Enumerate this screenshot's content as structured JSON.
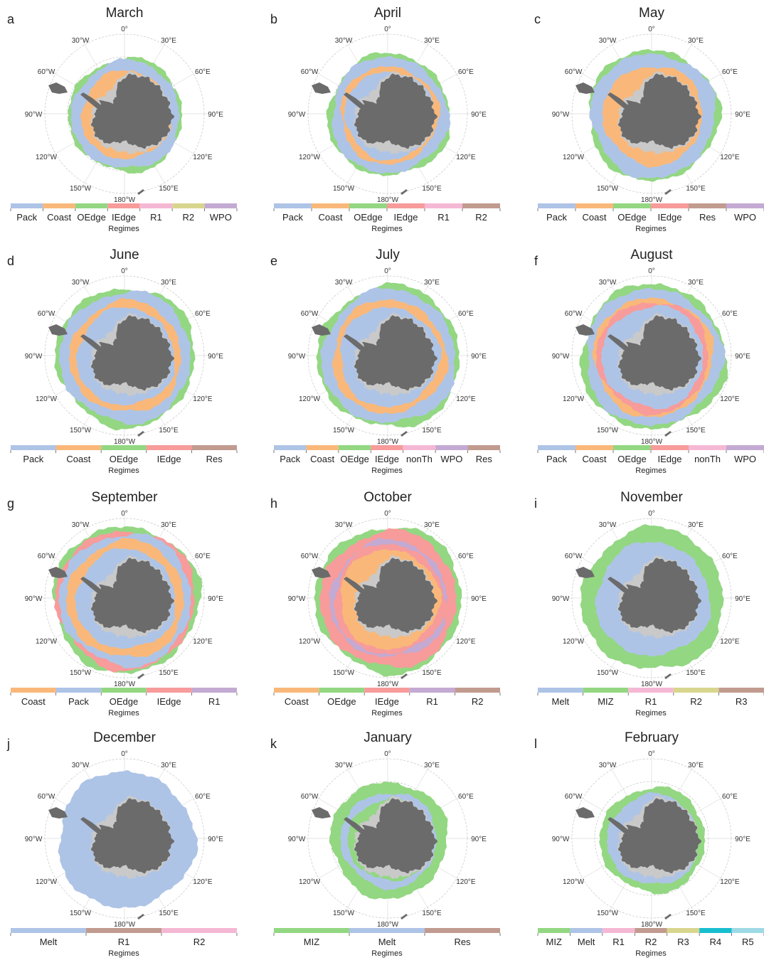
{
  "lon_labels": [
    "0°",
    "30°E",
    "60°E",
    "90°E",
    "120°E",
    "150°E",
    "180°W",
    "150°W",
    "120°W",
    "90°W",
    "60°W",
    "30°W"
  ],
  "legend_title": "Regimes",
  "panels": [
    {
      "letter": "a",
      "title": "March",
      "regimes": [
        {
          "name": "Pack",
          "color": "#aec4e6"
        },
        {
          "name": "Coast",
          "color": "#f9b87a"
        },
        {
          "name": "OEdge",
          "color": "#93d782"
        },
        {
          "name": "IEdge",
          "color": "#f79b9b"
        },
        {
          "name": "R1",
          "color": "#f5b8d4"
        },
        {
          "name": "R2",
          "color": "#d8d68e"
        },
        {
          "name": "WPO",
          "color": "#c3aad3"
        }
      ]
    },
    {
      "letter": "b",
      "title": "April",
      "regimes": [
        {
          "name": "Pack",
          "color": "#aec4e6"
        },
        {
          "name": "Coast",
          "color": "#f9b87a"
        },
        {
          "name": "OEdge",
          "color": "#93d782"
        },
        {
          "name": "IEdge",
          "color": "#f79b9b"
        },
        {
          "name": "R1",
          "color": "#f5b8d4"
        },
        {
          "name": "R2",
          "color": "#c19b8f"
        }
      ]
    },
    {
      "letter": "c",
      "title": "May",
      "regimes": [
        {
          "name": "Pack",
          "color": "#aec4e6"
        },
        {
          "name": "Coast",
          "color": "#f9b87a"
        },
        {
          "name": "OEdge",
          "color": "#93d782"
        },
        {
          "name": "IEdge",
          "color": "#f79b9b"
        },
        {
          "name": "Res",
          "color": "#c19b8f"
        },
        {
          "name": "WPO",
          "color": "#c3aad3"
        }
      ]
    },
    {
      "letter": "d",
      "title": "June",
      "regimes": [
        {
          "name": "Pack",
          "color": "#aec4e6"
        },
        {
          "name": "Coast",
          "color": "#f9b87a"
        },
        {
          "name": "OEdge",
          "color": "#93d782"
        },
        {
          "name": "IEdge",
          "color": "#f79b9b"
        },
        {
          "name": "Res",
          "color": "#c19b8f"
        }
      ]
    },
    {
      "letter": "e",
      "title": "July",
      "regimes": [
        {
          "name": "Pack",
          "color": "#aec4e6"
        },
        {
          "name": "Coast",
          "color": "#f9b87a"
        },
        {
          "name": "OEdge",
          "color": "#93d782"
        },
        {
          "name": "IEdge",
          "color": "#f79b9b"
        },
        {
          "name": "nonTh",
          "color": "#f5b8d4"
        },
        {
          "name": "WPO",
          "color": "#c3aad3"
        },
        {
          "name": "Res",
          "color": "#c19b8f"
        }
      ]
    },
    {
      "letter": "f",
      "title": "August",
      "regimes": [
        {
          "name": "Pack",
          "color": "#aec4e6"
        },
        {
          "name": "Coast",
          "color": "#f9b87a"
        },
        {
          "name": "OEdge",
          "color": "#93d782"
        },
        {
          "name": "IEdge",
          "color": "#f79b9b"
        },
        {
          "name": "nonTh",
          "color": "#f5b8d4"
        },
        {
          "name": "WPO",
          "color": "#c3aad3"
        }
      ]
    },
    {
      "letter": "g",
      "title": "September",
      "regimes": [
        {
          "name": "Coast",
          "color": "#f9b87a"
        },
        {
          "name": "Pack",
          "color": "#aec4e6"
        },
        {
          "name": "OEdge",
          "color": "#93d782"
        },
        {
          "name": "IEdge",
          "color": "#f79b9b"
        },
        {
          "name": "R1",
          "color": "#c3aad3"
        }
      ]
    },
    {
      "letter": "h",
      "title": "October",
      "regimes": [
        {
          "name": "Coast",
          "color": "#f9b87a"
        },
        {
          "name": "OEdge",
          "color": "#93d782"
        },
        {
          "name": "IEdge",
          "color": "#f79b9b"
        },
        {
          "name": "R1",
          "color": "#c3aad3"
        },
        {
          "name": "R2",
          "color": "#c19b8f"
        }
      ]
    },
    {
      "letter": "i",
      "title": "November",
      "regimes": [
        {
          "name": "Melt",
          "color": "#aec4e6"
        },
        {
          "name": "MIZ",
          "color": "#93d782"
        },
        {
          "name": "R1",
          "color": "#f5b8d4"
        },
        {
          "name": "R2",
          "color": "#d8d68e"
        },
        {
          "name": "R3",
          "color": "#c19b8f"
        }
      ]
    },
    {
      "letter": "j",
      "title": "December",
      "regimes": [
        {
          "name": "Melt",
          "color": "#aec4e6"
        },
        {
          "name": "R1",
          "color": "#c19b8f"
        },
        {
          "name": "R2",
          "color": "#f5b8d4"
        }
      ]
    },
    {
      "letter": "k",
      "title": "January",
      "regimes": [
        {
          "name": "MIZ",
          "color": "#93d782"
        },
        {
          "name": "Melt",
          "color": "#aec4e6"
        },
        {
          "name": "Res",
          "color": "#c19b8f"
        }
      ]
    },
    {
      "letter": "l",
      "title": "February",
      "regimes": [
        {
          "name": "MIZ",
          "color": "#93d782"
        },
        {
          "name": "Melt",
          "color": "#aec4e6"
        },
        {
          "name": "R1",
          "color": "#f5b8d4"
        },
        {
          "name": "R2",
          "color": "#c19b8f"
        },
        {
          "name": "R3",
          "color": "#d8d68e"
        },
        {
          "name": "R4",
          "color": "#17becf"
        },
        {
          "name": "R5",
          "color": "#9edae5"
        }
      ]
    }
  ]
}
